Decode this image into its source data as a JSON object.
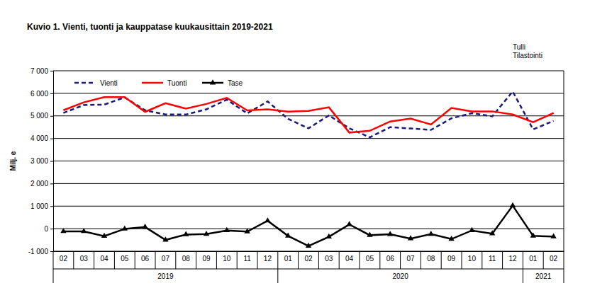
{
  "chart_data": {
    "type": "line",
    "title": "Kuvio  1. Vienti, tuonti ja kauppatase kuukausittain 2019-2021",
    "source": [
      "Tulli",
      "Tilastointi"
    ],
    "y_label": "Milj. e",
    "categories": [
      "02",
      "03",
      "04",
      "05",
      "06",
      "07",
      "08",
      "09",
      "10",
      "11",
      "12",
      "01",
      "02",
      "03",
      "04",
      "05",
      "06",
      "07",
      "08",
      "09",
      "10",
      "11",
      "12",
      "01",
      "02"
    ],
    "category_groups": [
      {
        "label": "2019",
        "count": 11
      },
      {
        "label": "2020",
        "count": 12
      },
      {
        "label": "2021",
        "count": 2
      }
    ],
    "series": [
      {
        "name": "Vienti",
        "color": "#1a1a80",
        "line_style": "dashed",
        "values": [
          5130,
          5480,
          5500,
          5820,
          5250,
          5060,
          5060,
          5290,
          5720,
          5110,
          5640,
          4870,
          4450,
          5020,
          4450,
          4050,
          4500,
          4440,
          4380,
          4890,
          5120,
          4980,
          6080,
          4400,
          4780
        ]
      },
      {
        "name": "Tuonti",
        "color": "#ff0000",
        "line_style": "solid",
        "values": [
          5250,
          5600,
          5830,
          5830,
          5180,
          5560,
          5320,
          5530,
          5800,
          5240,
          5290,
          5190,
          5220,
          5380,
          4260,
          4340,
          4750,
          4880,
          4620,
          5350,
          5200,
          5200,
          5060,
          4720,
          5130
        ]
      },
      {
        "name": "Tase",
        "color": "#000000",
        "line_style": "solid",
        "marker": "triangle",
        "values": [
          -120,
          -120,
          -330,
          -10,
          70,
          -500,
          -260,
          -240,
          -80,
          -130,
          350,
          -320,
          -770,
          -360,
          190,
          -290,
          -250,
          -440,
          -240,
          -460,
          -80,
          -220,
          1020,
          -320,
          -350
        ]
      }
    ],
    "ylim": [
      -1000,
      7000
    ],
    "yticks": [
      {
        "value": -1000,
        "label": "-1 000"
      },
      0,
      {
        "value": 1000,
        "label": "1 000"
      },
      {
        "value": 2000,
        "label": "2 000"
      },
      {
        "value": 3000,
        "label": "3 000"
      },
      {
        "value": 4000,
        "label": "4 000"
      },
      {
        "value": 5000,
        "label": "5 000"
      },
      {
        "value": 6000,
        "label": "6 000"
      },
      {
        "value": 7000,
        "label": "7 000"
      }
    ],
    "grid": true,
    "legend": "top-left"
  }
}
